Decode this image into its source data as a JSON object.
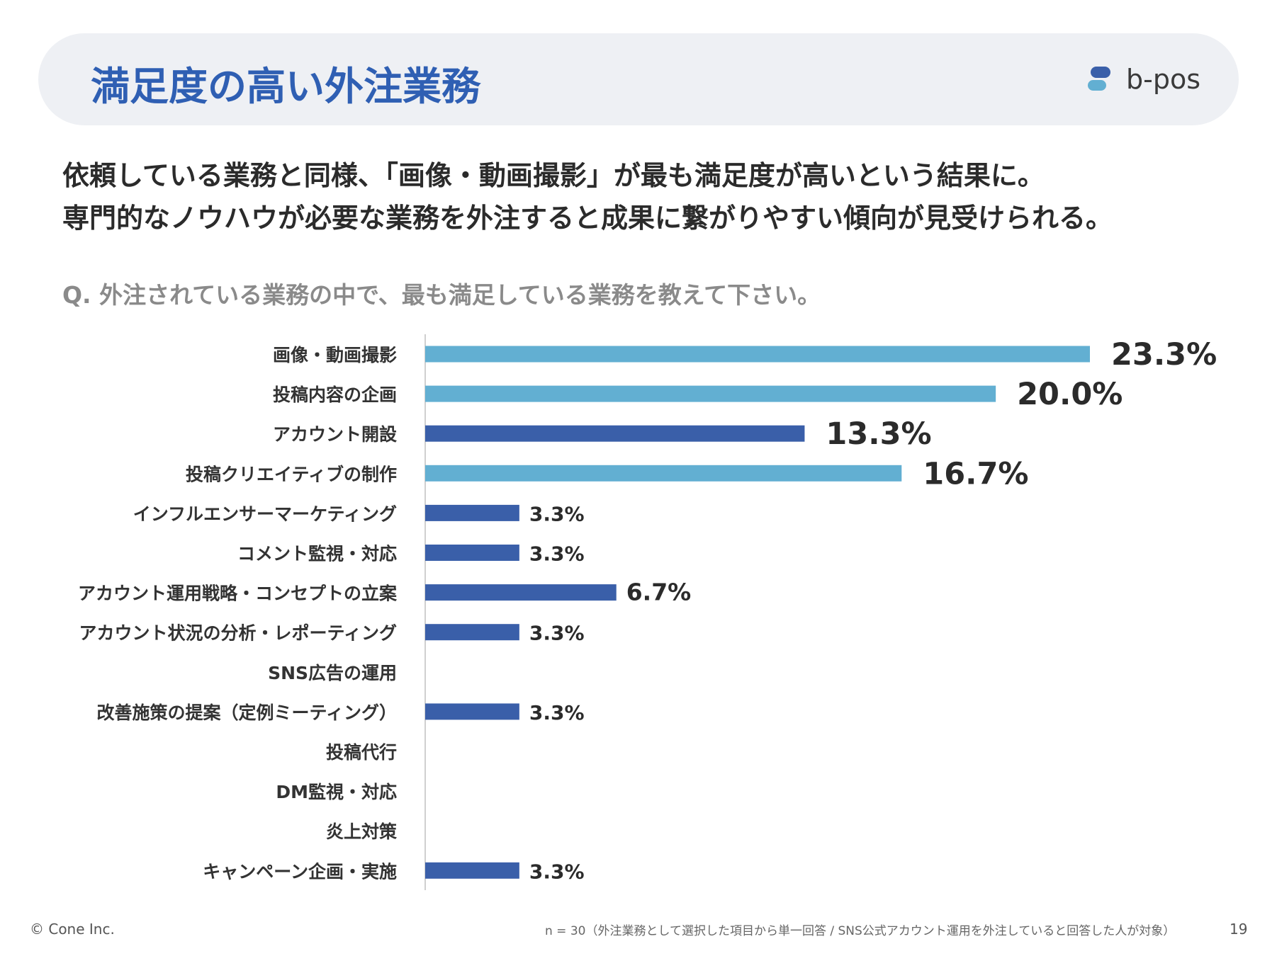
{
  "header": {
    "title": "満足度の高い外注業務",
    "logo_text": "b-pos"
  },
  "lead": {
    "line1": "依頼している業務と同様、「画像・動画撮影」が最も満足度が高いという結果に。",
    "line2": "専門的なノウハウが必要な業務を外注すると成果に繋がりやすい傾向が見受けられる。"
  },
  "question": "Q. 外注されている業務の中で、最も満足している業務を教えて下さい。",
  "footer": {
    "copyright": "© Cone Inc.",
    "note": "n = 30（外注業務として選択した項目から単一回答 / SNS公式アカウント運用を外注していると回答した人が対象）",
    "page": "19"
  },
  "colors": {
    "title": "#2f5fb3",
    "highlight": "#62afd2",
    "base": "#3a5fa9"
  },
  "chart_data": {
    "type": "bar",
    "orientation": "horizontal",
    "categories": [
      "画像・動画撮影",
      "投稿内容の企画",
      "アカウント開設",
      "投稿クリエイティブの制作",
      "インフルエンサーマーケティング",
      "コメント監視・対応",
      "アカウント運用戦略・コンセプトの立案",
      "アカウント状況の分析・レポーティング",
      "SNS広告の運用",
      "改善施策の提案（定例ミーティング）",
      "投稿代行",
      "DM監視・対応",
      "炎上対策",
      "キャンペーン企画・実施"
    ],
    "values": [
      23.3,
      20.0,
      13.3,
      16.7,
      3.3,
      3.3,
      6.7,
      3.3,
      0,
      3.3,
      0,
      0,
      0,
      3.3
    ],
    "labels": [
      "23.3%",
      "20.0%",
      "13.3%",
      "16.7%",
      "3.3%",
      "3.3%",
      "6.7%",
      "3.3%",
      "",
      "3.3%",
      "",
      "",
      "",
      "3.3%"
    ],
    "highlighted": [
      true,
      true,
      false,
      true,
      false,
      false,
      false,
      false,
      false,
      false,
      false,
      false,
      false,
      false
    ],
    "xlim": [
      0,
      23.3
    ],
    "grid": false
  }
}
